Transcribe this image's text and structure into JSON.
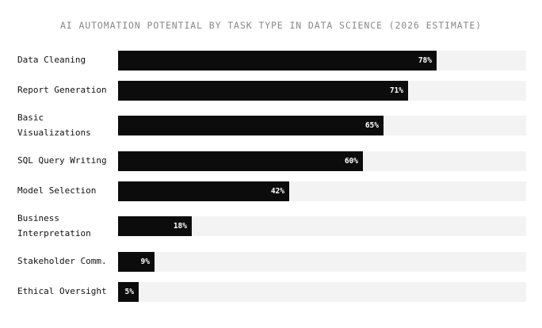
{
  "chart_data": {
    "type": "bar",
    "orientation": "horizontal",
    "title": "AI AUTOMATION POTENTIAL BY TASK TYPE IN DATA SCIENCE (2026 ESTIMATE)",
    "categories": [
      "Data Cleaning",
      "Report Generation",
      "Basic Visualizations",
      "SQL Query Writing",
      "Model Selection",
      "Business Interpretation",
      "Stakeholder Comm.",
      "Ethical Oversight"
    ],
    "values": [
      78,
      71,
      65,
      60,
      42,
      18,
      9,
      5
    ],
    "value_labels": [
      "78%",
      "71%",
      "65%",
      "60%",
      "42%",
      "18%",
      "9%",
      "5%"
    ],
    "xlim": [
      0,
      100
    ],
    "grid": false,
    "legend": "none",
    "colors": {
      "bar": "#0c0c0c",
      "track": "#f3f3f3",
      "value_text": "#ffffff",
      "label_text": "#111111",
      "title_text": "#888888"
    }
  }
}
